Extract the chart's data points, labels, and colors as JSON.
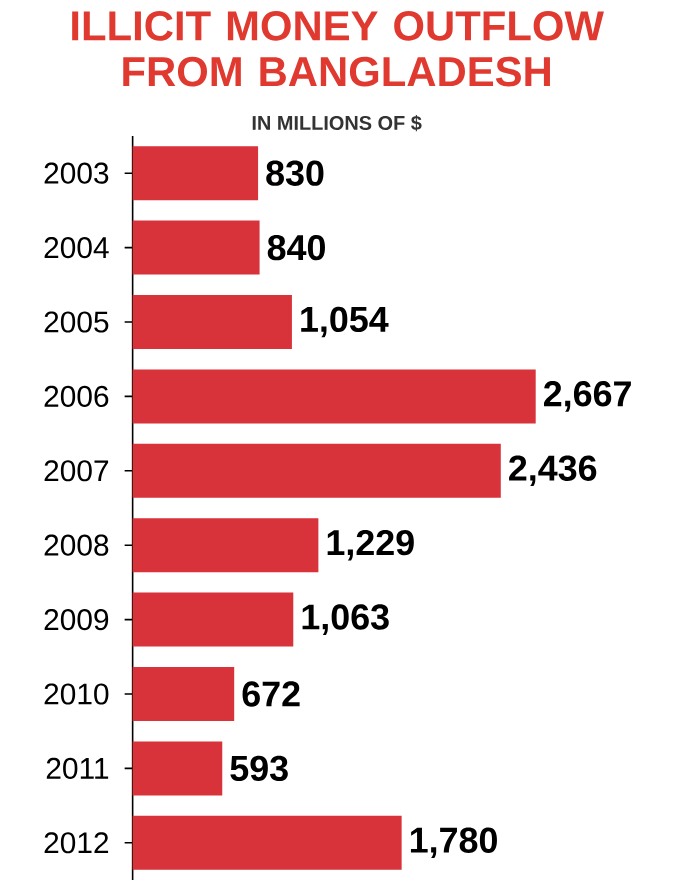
{
  "chart_data": {
    "type": "bar",
    "orientation": "horizontal",
    "title": "ILLICIT MONEY OUTFLOW FROM BANGLADESH",
    "subtitle": "IN MILLIONS OF $",
    "categories": [
      "2003",
      "2004",
      "2005",
      "2006",
      "2007",
      "2008",
      "2009",
      "2010",
      "2011",
      "2012"
    ],
    "values": [
      830,
      840,
      1054,
      2667,
      2436,
      1229,
      1063,
      672,
      593,
      1780
    ],
    "value_labels": [
      "830",
      "840",
      "1,054",
      "2,667",
      "2,436",
      "1,229",
      "1,063",
      "672",
      "593",
      "1,780"
    ],
    "color": "#d8323a"
  }
}
